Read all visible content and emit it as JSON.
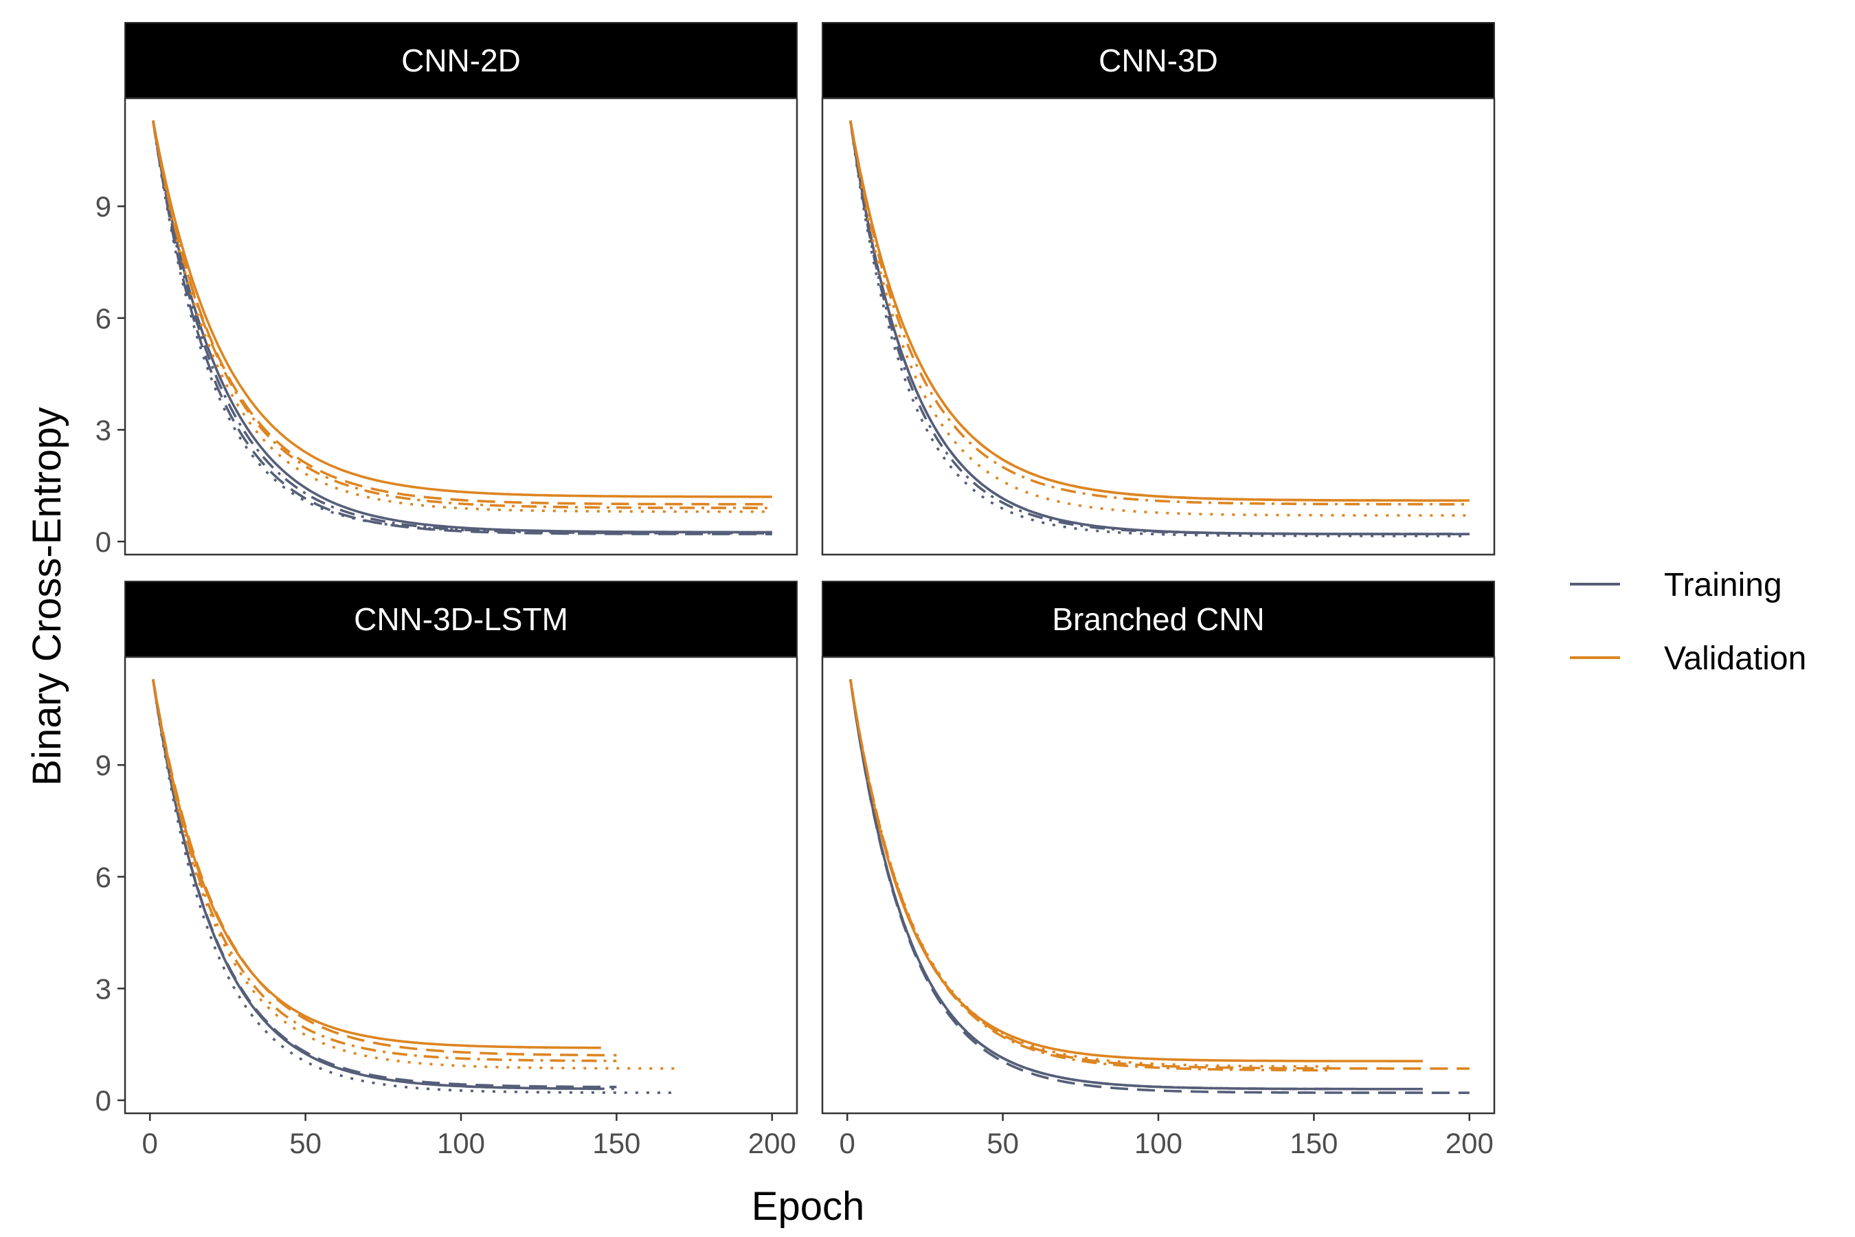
{
  "chart_data": {
    "type": "line",
    "xlabel": "Epoch",
    "ylabel": "Binary Cross-Entropy",
    "xlim": [
      -8,
      208
    ],
    "ylim": [
      -0.35,
      11.9
    ],
    "x_ticks": [
      0,
      50,
      100,
      150,
      200
    ],
    "y_ticks": [
      0,
      3,
      6,
      9
    ],
    "grid": false,
    "legend_position": "right",
    "legend": [
      {
        "label": "Training",
        "color": "#555e78"
      },
      {
        "label": "Validation",
        "color": "#dd8521"
      }
    ],
    "colors": {
      "training": "#555e78",
      "validation": "#dd8521",
      "strip_bg": "#000000"
    },
    "linetypes": [
      "solid",
      "dashed",
      "dotted",
      "dotdash"
    ],
    "panels": [
      {
        "title": "CNN-2D",
        "runs": [
          {
            "linetype": "solid",
            "training": {
              "end_epoch": 200,
              "final": 0.25,
              "tau": 22
            },
            "validation": {
              "end_epoch": 200,
              "final": 1.2,
              "tau": 23
            }
          },
          {
            "linetype": "dashed",
            "training": {
              "end_epoch": 200,
              "final": 0.2,
              "tau": 20
            },
            "validation": {
              "end_epoch": 200,
              "final": 1.0,
              "tau": 22
            }
          },
          {
            "linetype": "dotted",
            "training": {
              "end_epoch": 200,
              "final": 0.25,
              "tau": 19
            },
            "validation": {
              "end_epoch": 200,
              "final": 0.8,
              "tau": 21
            }
          },
          {
            "linetype": "dotdash",
            "training": {
              "end_epoch": 200,
              "final": 0.22,
              "tau": 21
            },
            "validation": {
              "end_epoch": 200,
              "final": 0.9,
              "tau": 22
            }
          }
        ]
      },
      {
        "title": "CNN-3D",
        "runs": [
          {
            "linetype": "solid",
            "training": {
              "end_epoch": 200,
              "final": 0.2,
              "tau": 20
            },
            "validation": {
              "end_epoch": 200,
              "final": 1.1,
              "tau": 22
            }
          },
          {
            "linetype": "dashed",
            "training": {
              "end_epoch": 200,
              "final": 0.2,
              "tau": 20
            },
            "validation": {
              "end_epoch": 200,
              "final": 1.1,
              "tau": 22
            }
          },
          {
            "linetype": "dotted",
            "training": {
              "end_epoch": 200,
              "final": 0.15,
              "tau": 18
            },
            "validation": {
              "end_epoch": 200,
              "final": 0.7,
              "tau": 20
            }
          },
          {
            "linetype": "dotdash",
            "training": {
              "end_epoch": 200,
              "final": 0.2,
              "tau": 19
            },
            "validation": {
              "end_epoch": 200,
              "final": 1.0,
              "tau": 21
            }
          }
        ]
      },
      {
        "title": "CNN-3D-LSTM",
        "runs": [
          {
            "linetype": "solid",
            "training": {
              "end_epoch": 145,
              "final": 0.3,
              "tau": 20
            },
            "validation": {
              "end_epoch": 145,
              "final": 1.4,
              "tau": 20
            }
          },
          {
            "linetype": "dashed",
            "training": {
              "end_epoch": 150,
              "final": 0.35,
              "tau": 20
            },
            "validation": {
              "end_epoch": 150,
              "final": 1.2,
              "tau": 21
            }
          },
          {
            "linetype": "dotted",
            "training": {
              "end_epoch": 168,
              "final": 0.2,
              "tau": 19
            },
            "validation": {
              "end_epoch": 170,
              "final": 0.85,
              "tau": 20
            }
          },
          {
            "linetype": "dotdash",
            "training": {
              "end_epoch": 150,
              "final": 0.3,
              "tau": 20
            },
            "validation": {
              "end_epoch": 150,
              "final": 1.05,
              "tau": 20
            }
          }
        ]
      },
      {
        "title": "Branched CNN",
        "runs": [
          {
            "linetype": "solid",
            "training": {
              "end_epoch": 185,
              "final": 0.3,
              "tau": 19
            },
            "validation": {
              "end_epoch": 185,
              "final": 1.05,
              "tau": 19
            }
          },
          {
            "linetype": "dashed",
            "training": {
              "end_epoch": 200,
              "final": 0.2,
              "tau": 19
            },
            "validation": {
              "end_epoch": 200,
              "final": 0.85,
              "tau": 20
            }
          },
          {
            "linetype": "dotted",
            "training": {
              "end_epoch": 155,
              "final": 0.3,
              "tau": 19
            },
            "validation": {
              "end_epoch": 155,
              "final": 0.9,
              "tau": 20
            }
          },
          {
            "linetype": "dotdash",
            "training": {
              "end_epoch": 155,
              "final": 0.3,
              "tau": 19
            },
            "validation": {
              "end_epoch": 155,
              "final": 0.8,
              "tau": 20
            }
          }
        ]
      }
    ]
  }
}
